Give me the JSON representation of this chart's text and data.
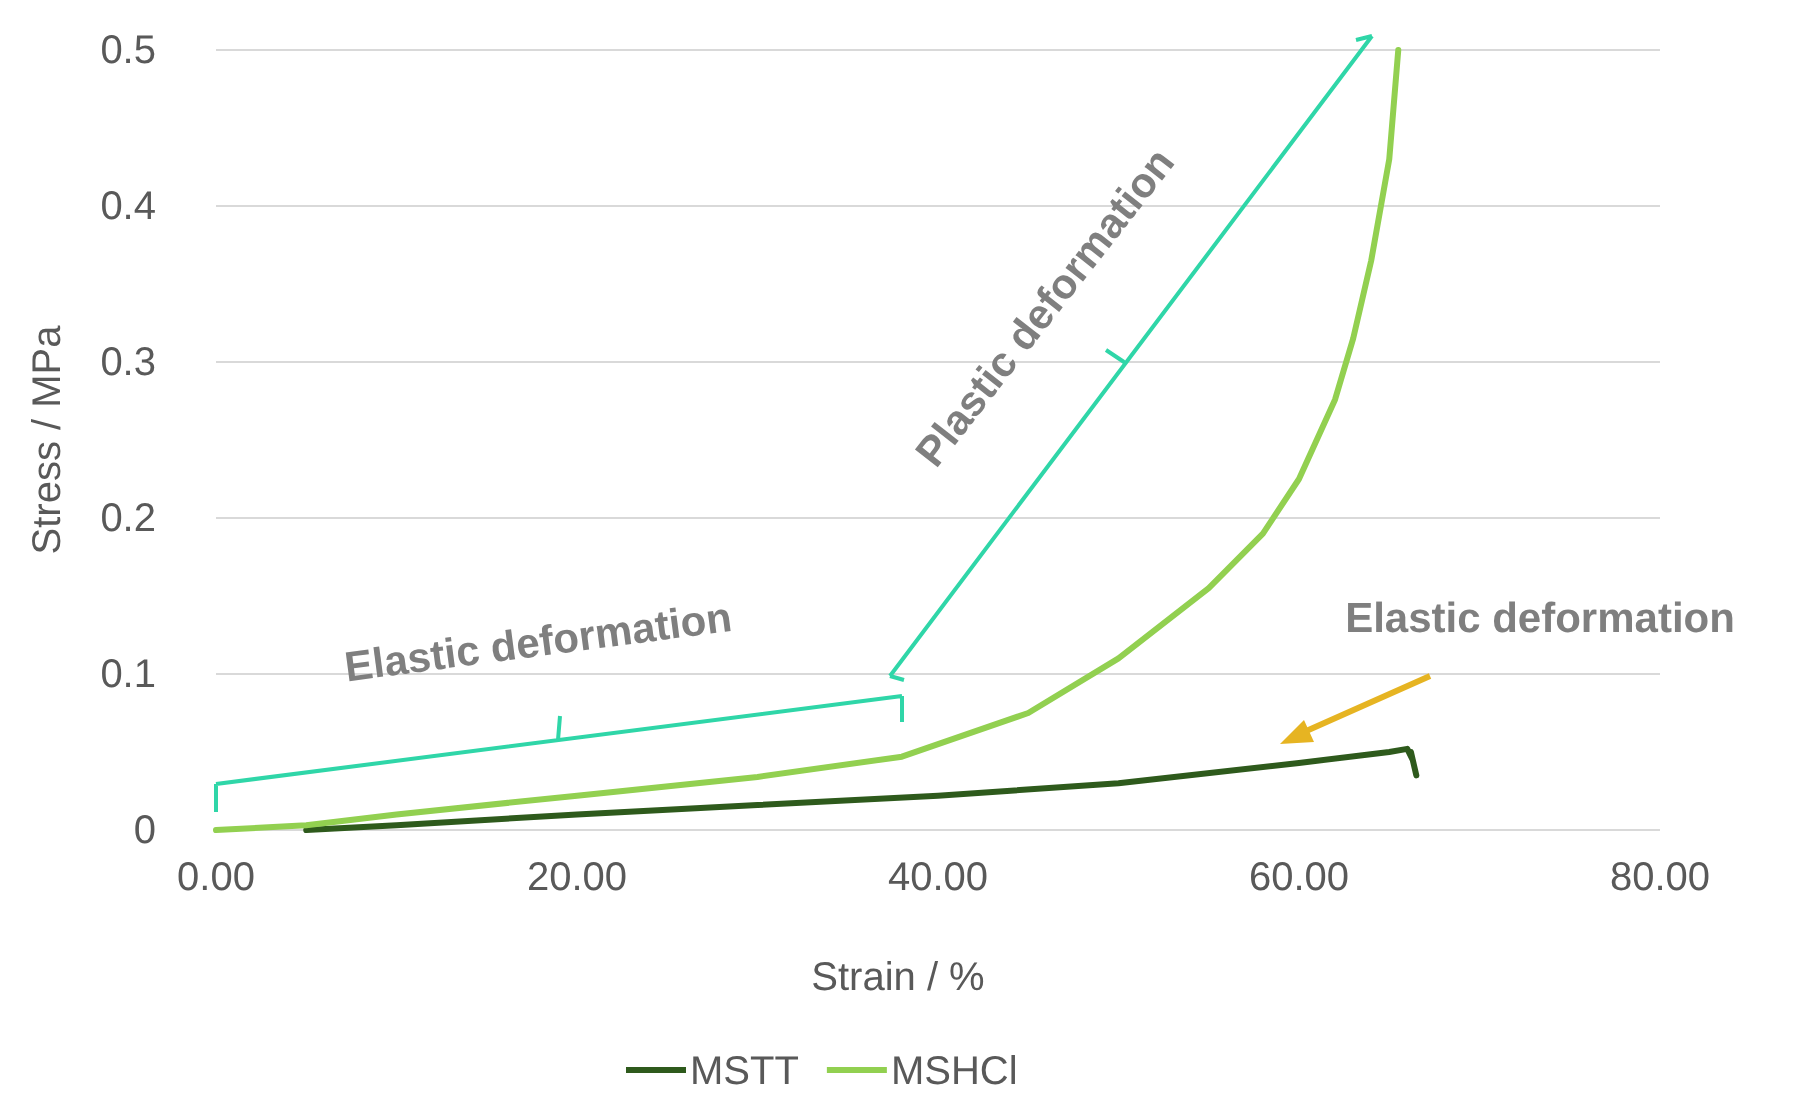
{
  "chart_data": {
    "type": "line",
    "xlabel": "Strain / %",
    "ylabel": "Stress / MPa",
    "xlim": [
      0,
      80
    ],
    "xticks": [
      {
        "value": 0,
        "label": "0.00"
      },
      {
        "value": 20,
        "label": "20.00"
      },
      {
        "value": 40,
        "label": "40.00"
      },
      {
        "value": 60,
        "label": "60.00"
      },
      {
        "value": 80,
        "label": "80.00"
      }
    ],
    "ylim": [
      0,
      0.5
    ],
    "yticks": [
      0,
      0.1,
      0.2,
      0.3,
      0.4,
      0.5
    ],
    "grid": "y",
    "legend": "bottom",
    "marker": "none",
    "line_style": "solid",
    "annotations": [
      "Elastic deformation",
      "Plastic deformation",
      "Elastic deformation"
    ],
    "series": [
      {
        "name": "MSTT",
        "color": "#2e5a1c",
        "x": [
          5,
          10,
          20,
          30,
          40,
          50,
          60,
          65,
          66,
          66.3,
          66.5,
          66.2
        ],
        "values": [
          0,
          0.003,
          0.01,
          0.016,
          0.022,
          0.03,
          0.043,
          0.05,
          0.052,
          0.045,
          0.035,
          0.05
        ]
      },
      {
        "name": "MSHCl",
        "color": "#92d050",
        "x": [
          0,
          5,
          10,
          20,
          30,
          38,
          45,
          50,
          55,
          58,
          60,
          62,
          63,
          64,
          65,
          65.5
        ],
        "values": [
          0,
          0.003,
          0.01,
          0.022,
          0.034,
          0.047,
          0.075,
          0.11,
          0.155,
          0.19,
          0.225,
          0.276,
          0.315,
          0.365,
          0.43,
          0.5
        ]
      }
    ]
  }
}
